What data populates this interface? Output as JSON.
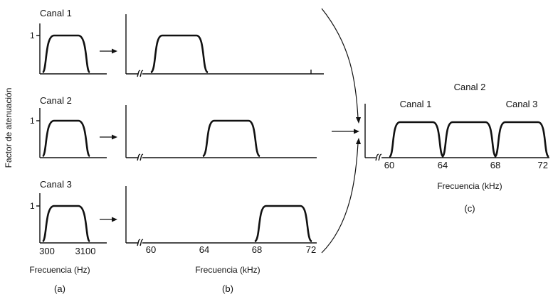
{
  "ylabel": "Factor de atenuación",
  "panel_a": {
    "channels": [
      "Canal 1",
      "Canal 2",
      "Canal 3"
    ],
    "y_tick": "1",
    "x_ticks": [
      "300",
      "3100"
    ],
    "xlabel": "Frecuencia (Hz)",
    "caption": "(a)"
  },
  "panel_b": {
    "x_ticks": [
      "60",
      "64",
      "68",
      "72"
    ],
    "xlabel": "Frecuencia (kHz)",
    "caption": "(b)",
    "bands_khz": [
      [
        60,
        64
      ],
      [
        64,
        68
      ],
      [
        68,
        72
      ]
    ]
  },
  "panel_c": {
    "labels": [
      "Canal 1",
      "Canal 2",
      "Canal 3"
    ],
    "x_ticks": [
      "60",
      "64",
      "68",
      "72"
    ],
    "xlabel": "Frecuencia (kHz)",
    "caption": "(c)",
    "bands_khz": [
      [
        60,
        64
      ],
      [
        64,
        68
      ],
      [
        68,
        72
      ]
    ]
  }
}
